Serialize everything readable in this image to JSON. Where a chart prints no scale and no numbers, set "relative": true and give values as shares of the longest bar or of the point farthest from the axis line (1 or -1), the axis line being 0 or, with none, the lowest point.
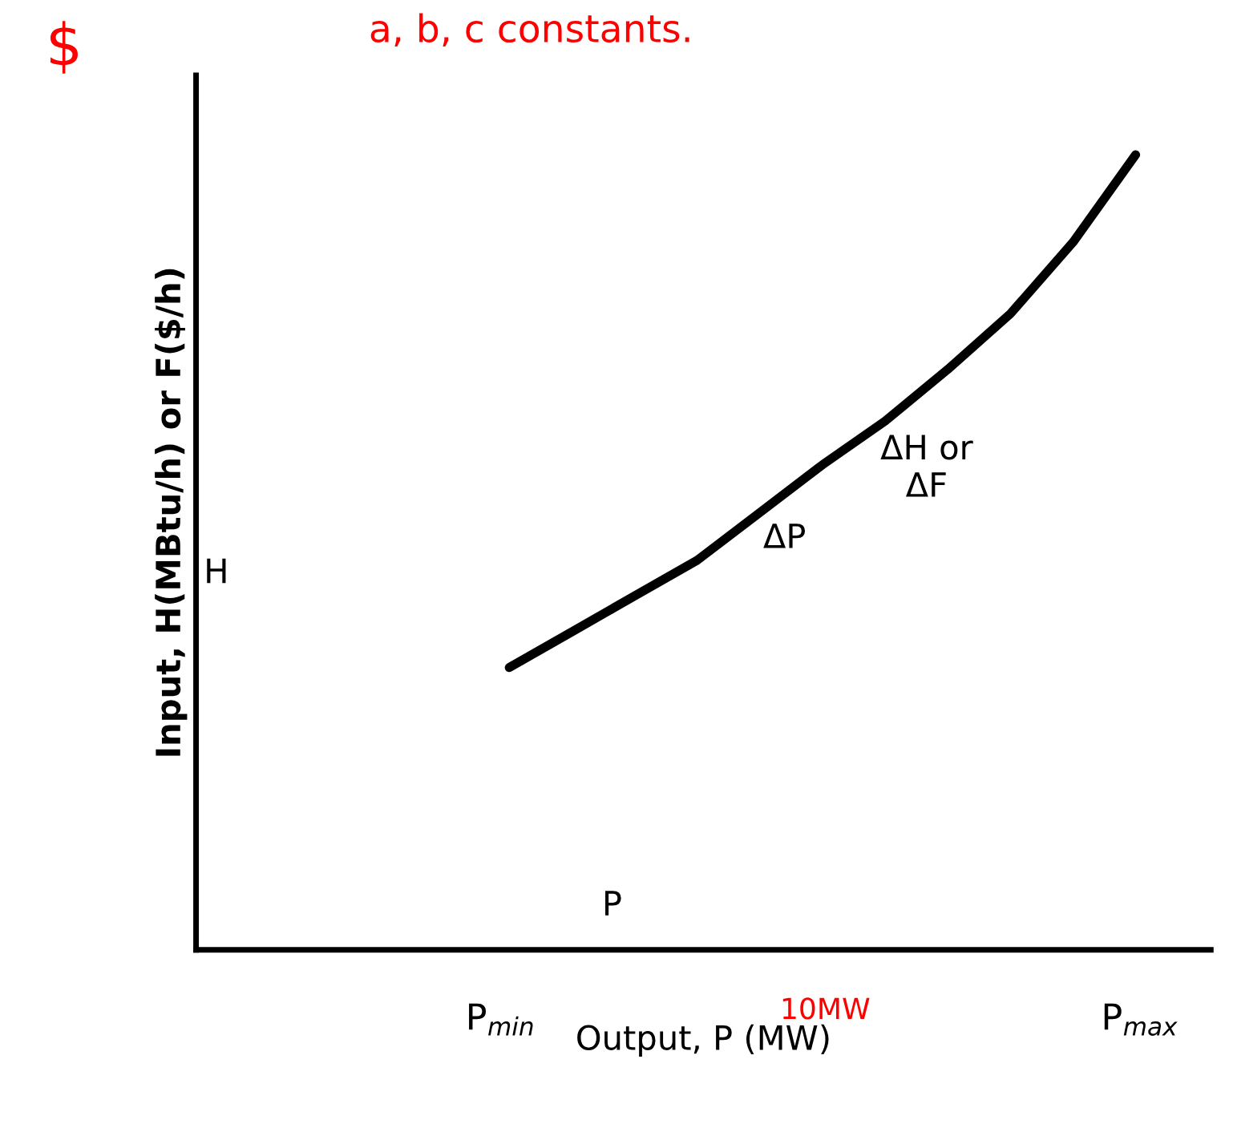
{
  "chart_data": {
    "type": "line",
    "relative": true,
    "xlabel": "Output, P (MW)",
    "ylabel": "Input, H(MBtu/h) or F($/h)",
    "categories": [
      null,
      null,
      null,
      null,
      null,
      null,
      null,
      null,
      null,
      null,
      null,
      null,
      null,
      null,
      null,
      null
    ],
    "series": [
      {
        "color": "#000000",
        "values": [
          null,
          null,
          null,
          null,
          null,
          0.355,
          0.4,
          0.445,
          0.49,
          0.55,
          0.61,
          0.665,
          0.73,
          0.8,
          0.89,
          1.0
        ]
      }
    ],
    "annotations": [
      "$",
      "a, b, c constants.",
      "H",
      "P",
      "ΔP",
      "ΔH or\nΔF",
      "P$_{min}$",
      "10MW",
      "P$_{max}$"
    ],
    "grid": false,
    "legend": false
  }
}
